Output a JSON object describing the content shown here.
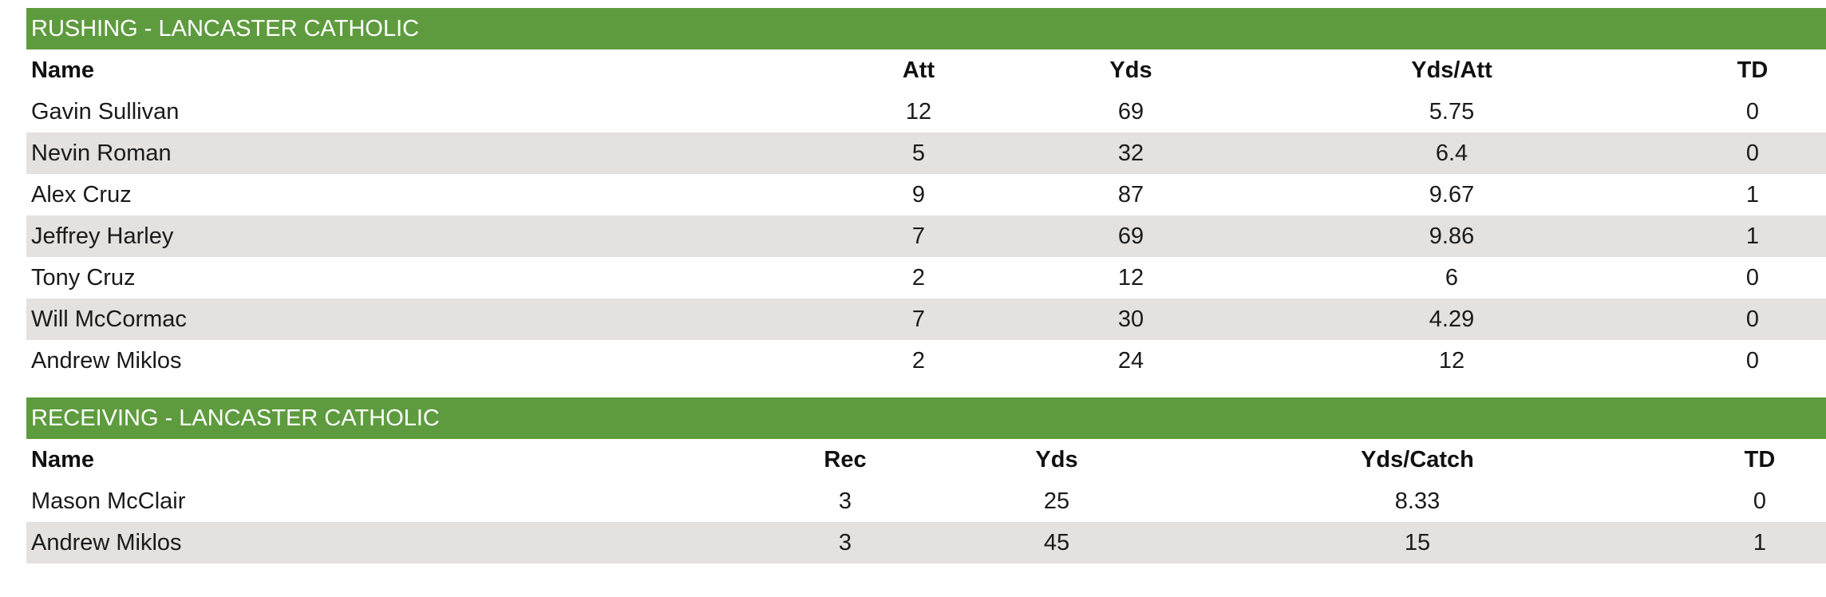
{
  "rushing": {
    "title": "RUSHING - LANCASTER CATHOLIC",
    "headers": [
      "Name",
      "Att",
      "Yds",
      "Yds/Att",
      "TD"
    ],
    "rows": [
      [
        "Gavin Sullivan",
        "12",
        "69",
        "5.75",
        "0"
      ],
      [
        "Nevin Roman",
        "5",
        "32",
        "6.4",
        "0"
      ],
      [
        "Alex Cruz",
        "9",
        "87",
        "9.67",
        "1"
      ],
      [
        "Jeffrey Harley",
        "7",
        "69",
        "9.86",
        "1"
      ],
      [
        "Tony Cruz",
        "2",
        "12",
        "6",
        "0"
      ],
      [
        "Will McCormac",
        "7",
        "30",
        "4.29",
        "0"
      ],
      [
        "Andrew Miklos",
        "2",
        "24",
        "12",
        "0"
      ]
    ]
  },
  "receiving": {
    "title": "RECEIVING - LANCASTER CATHOLIC",
    "headers": [
      "Name",
      "Rec",
      "Yds",
      "Yds/Catch",
      "TD"
    ],
    "rows": [
      [
        "Mason McClair",
        "3",
        "25",
        "8.33",
        "0"
      ],
      [
        "Andrew Miklos",
        "3",
        "45",
        "15",
        "1"
      ]
    ]
  },
  "colors": {
    "header_bg": "#5e9b3e",
    "header_text": "#ffffff",
    "alt_row_bg": "#e4e1df"
  }
}
